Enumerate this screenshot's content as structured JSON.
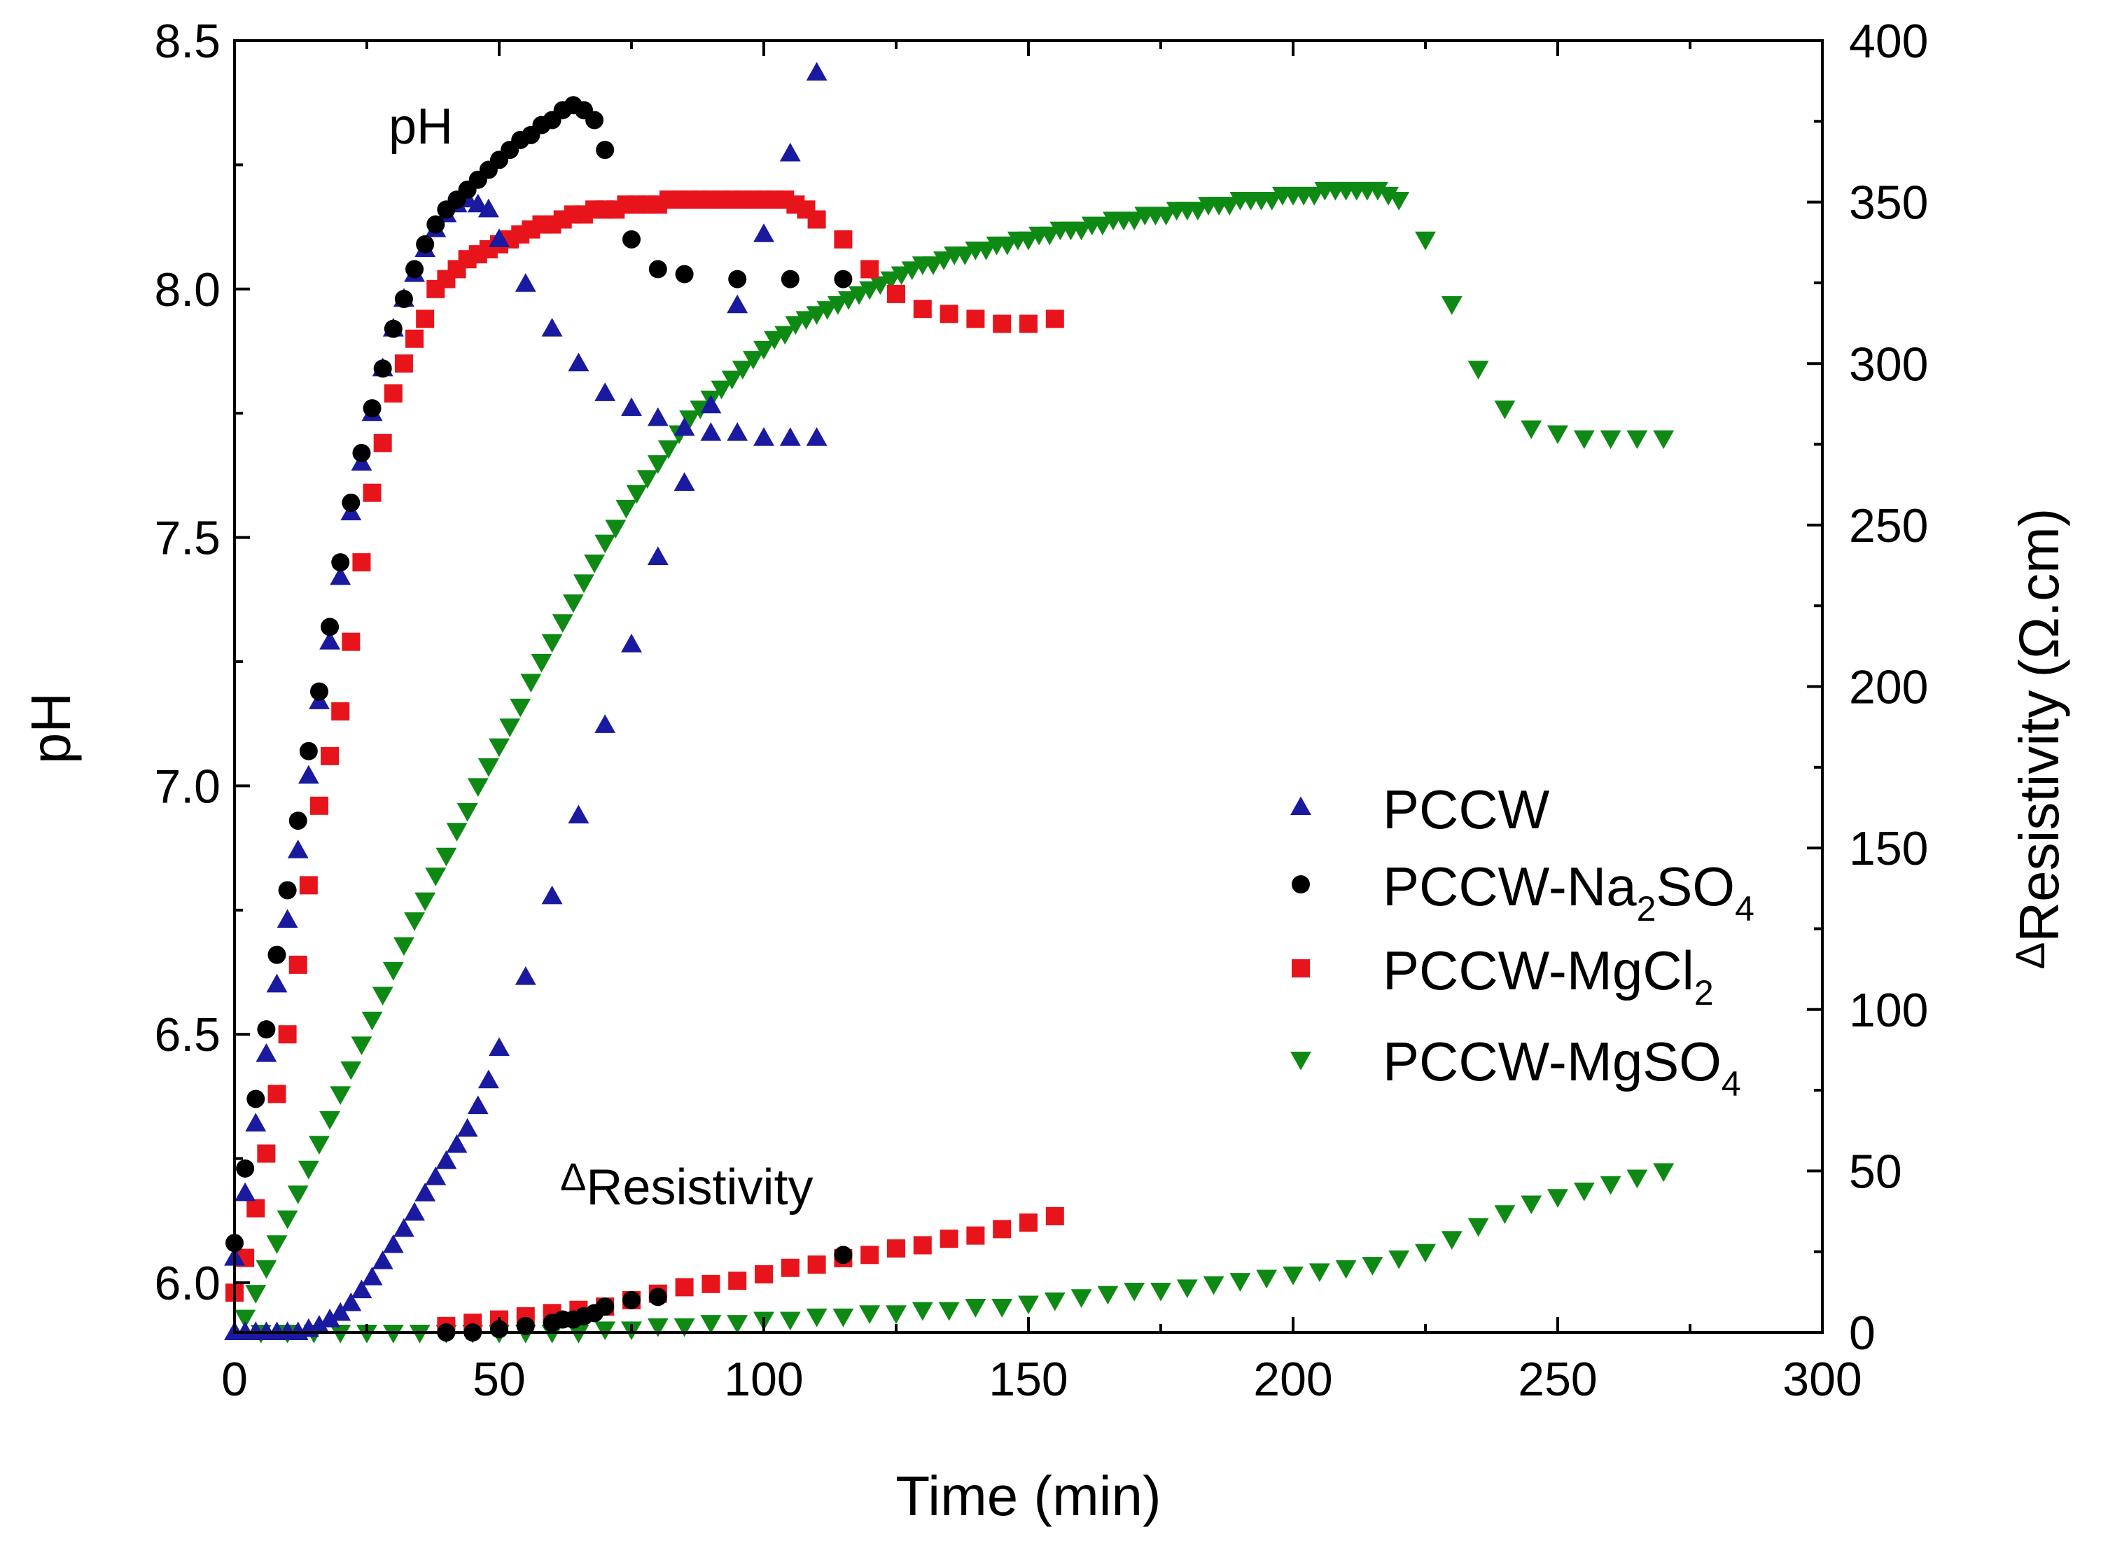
{
  "chart_data": {
    "type": "scatter",
    "title": "",
    "xlabel": "Time (min)",
    "ylabel": "pH",
    "y2label": "ΔResistivity (Ω.cm)",
    "y2label_parts": {
      "delta": "Δ",
      "word": "Resistivity",
      "unit": "(Ω.cm)"
    },
    "xlim": [
      0,
      300
    ],
    "ylim": [
      5.9,
      8.5
    ],
    "y2lim": [
      0,
      400
    ],
    "xticks": [
      0,
      50,
      100,
      150,
      200,
      250,
      300
    ],
    "yticks": [
      6.0,
      6.5,
      7.0,
      7.5,
      8.0,
      8.5
    ],
    "y2ticks": [
      0,
      50,
      100,
      150,
      200,
      250,
      300,
      350,
      400
    ],
    "grid": false,
    "legend_position": "right-middle",
    "annotations": [
      {
        "id": "ph",
        "text": "pH"
      },
      {
        "id": "res",
        "delta": "Δ",
        "text": "Resistivity"
      }
    ],
    "series": [
      {
        "name": "PCCW",
        "label_main": "PCCW",
        "label_sub": "",
        "label_tail": "",
        "marker": "triangle-up",
        "color": "#1a1aa0",
        "ph": {
          "x": [
            0,
            2,
            4,
            6,
            8,
            10,
            12,
            14,
            16,
            18,
            20,
            22,
            24,
            26,
            28,
            30,
            32,
            34,
            36,
            38,
            40,
            42,
            44,
            46,
            48,
            50,
            55,
            60,
            65,
            70,
            75,
            80,
            85,
            90,
            95,
            100,
            105,
            110
          ],
          "y": [
            6.05,
            6.18,
            6.32,
            6.46,
            6.6,
            6.73,
            6.87,
            7.02,
            7.17,
            7.29,
            7.42,
            7.55,
            7.65,
            7.75,
            7.84,
            7.92,
            7.98,
            8.03,
            8.08,
            8.12,
            8.15,
            8.17,
            8.18,
            8.17,
            8.16,
            8.1,
            8.01,
            7.92,
            7.85,
            7.79,
            7.76,
            7.74,
            7.72,
            7.71,
            7.71,
            7.7,
            7.7,
            7.7
          ]
        },
        "res": {
          "x": [
            0,
            2,
            4,
            6,
            8,
            10,
            12,
            14,
            16,
            18,
            20,
            22,
            24,
            26,
            28,
            30,
            32,
            34,
            36,
            38,
            40,
            42,
            44,
            46,
            48,
            50,
            55,
            60,
            65,
            70,
            75,
            80,
            85,
            90,
            95,
            100,
            105,
            110
          ],
          "y": [
            0,
            0,
            0,
            0,
            0,
            0,
            0,
            1,
            2,
            4,
            6,
            9,
            13,
            17,
            22,
            27,
            32,
            37,
            43,
            48,
            53,
            58,
            63,
            70,
            78,
            88,
            110,
            135,
            160,
            188,
            213,
            240,
            263,
            287,
            318,
            340,
            365,
            390
          ]
        }
      },
      {
        "name": "PCCW-Na2SO4",
        "label_main": "PCCW-Na",
        "label_sub": "2",
        "label_tail": "SO",
        "label_sub2": "4",
        "marker": "circle",
        "color": "#000000",
        "ph": {
          "x": [
            0,
            2,
            4,
            6,
            8,
            10,
            12,
            14,
            16,
            18,
            20,
            22,
            24,
            26,
            28,
            30,
            32,
            34,
            36,
            38,
            40,
            42,
            44,
            46,
            48,
            50,
            52,
            54,
            56,
            58,
            60,
            62,
            64,
            66,
            68,
            70,
            75,
            80,
            85,
            95,
            105,
            115
          ],
          "y": [
            6.08,
            6.23,
            6.37,
            6.51,
            6.66,
            6.79,
            6.93,
            7.07,
            7.19,
            7.32,
            7.45,
            7.57,
            7.67,
            7.76,
            7.84,
            7.92,
            7.98,
            8.04,
            8.09,
            8.13,
            8.16,
            8.18,
            8.2,
            8.22,
            8.24,
            8.26,
            8.28,
            8.3,
            8.31,
            8.33,
            8.34,
            8.36,
            8.37,
            8.36,
            8.34,
            8.28,
            8.1,
            8.04,
            8.03,
            8.02,
            8.02,
            8.02
          ]
        },
        "res": {
          "x": [
            40,
            45,
            50,
            55,
            60,
            62,
            64,
            66,
            68,
            70,
            75,
            80,
            115
          ],
          "y": [
            0,
            0,
            1,
            2,
            3,
            4,
            4,
            5,
            6,
            8,
            10,
            11,
            24
          ]
        }
      },
      {
        "name": "PCCW-MgCl2",
        "label_main": "PCCW-MgCl",
        "label_sub": "2",
        "label_tail": "",
        "marker": "square",
        "color": "#e8141c",
        "ph": {
          "x": [
            0,
            2,
            4,
            6,
            8,
            10,
            12,
            14,
            16,
            18,
            20,
            22,
            24,
            26,
            28,
            30,
            32,
            34,
            36,
            38,
            40,
            42,
            44,
            46,
            48,
            50,
            52,
            54,
            56,
            58,
            60,
            62,
            64,
            66,
            68,
            70,
            72,
            74,
            76,
            78,
            80,
            82,
            84,
            86,
            88,
            90,
            92,
            94,
            96,
            98,
            100,
            102,
            104,
            106,
            108,
            110,
            115,
            120,
            125,
            130,
            135,
            140,
            145,
            150,
            155
          ],
          "y": [
            5.98,
            6.05,
            6.15,
            6.26,
            6.38,
            6.5,
            6.64,
            6.8,
            6.96,
            7.06,
            7.15,
            7.29,
            7.45,
            7.59,
            7.69,
            7.79,
            7.85,
            7.9,
            7.94,
            8.0,
            8.02,
            8.04,
            8.06,
            8.07,
            8.08,
            8.09,
            8.1,
            8.11,
            8.12,
            8.13,
            8.13,
            8.14,
            8.15,
            8.15,
            8.16,
            8.16,
            8.16,
            8.17,
            8.17,
            8.17,
            8.17,
            8.18,
            8.18,
            8.18,
            8.18,
            8.18,
            8.18,
            8.18,
            8.18,
            8.18,
            8.18,
            8.18,
            8.18,
            8.17,
            8.16,
            8.14,
            8.1,
            8.04,
            7.99,
            7.96,
            7.95,
            7.94,
            7.93,
            7.93,
            7.94
          ]
        },
        "res": {
          "x": [
            40,
            45,
            50,
            55,
            60,
            65,
            70,
            75,
            80,
            85,
            90,
            95,
            100,
            105,
            110,
            115,
            120,
            125,
            130,
            135,
            140,
            145,
            150,
            155
          ],
          "y": [
            2,
            3,
            4,
            5,
            6,
            7,
            8,
            10,
            12,
            14,
            15,
            16,
            18,
            20,
            21,
            23,
            24,
            26,
            27,
            29,
            30,
            32,
            34,
            36
          ]
        }
      },
      {
        "name": "PCCW-MgSO4",
        "label_main": "PCCW-MgSO",
        "label_sub": "4",
        "label_tail": "",
        "marker": "triangle-down",
        "color": "#0e8a14",
        "ph": {
          "x": [
            2,
            4,
            6,
            8,
            10,
            12,
            14,
            16,
            18,
            20,
            22,
            24,
            26,
            28,
            30,
            32,
            34,
            36,
            38,
            40,
            42,
            44,
            46,
            48,
            50,
            52,
            54,
            56,
            58,
            60,
            62,
            64,
            66,
            68,
            70,
            72,
            74,
            76,
            78,
            80,
            82,
            84,
            86,
            88,
            90,
            92,
            94,
            96,
            98,
            100,
            102,
            104,
            106,
            108,
            110,
            112,
            114,
            116,
            118,
            120,
            122,
            124,
            126,
            128,
            130,
            132,
            134,
            136,
            138,
            140,
            142,
            144,
            146,
            148,
            150,
            152,
            154,
            156,
            158,
            160,
            162,
            164,
            166,
            168,
            170,
            172,
            174,
            176,
            178,
            180,
            182,
            184,
            186,
            188,
            190,
            192,
            194,
            196,
            198,
            200,
            202,
            204,
            206,
            208,
            210,
            212,
            214,
            216,
            218,
            220,
            225,
            230,
            235,
            240,
            245,
            250,
            255,
            260,
            265,
            270
          ],
          "y": [
            5.93,
            5.98,
            6.03,
            6.08,
            6.13,
            6.18,
            6.23,
            6.28,
            6.33,
            6.38,
            6.43,
            6.48,
            6.53,
            6.58,
            6.63,
            6.68,
            6.73,
            6.77,
            6.82,
            6.86,
            6.91,
            6.95,
            7.0,
            7.04,
            7.08,
            7.12,
            7.16,
            7.21,
            7.25,
            7.29,
            7.33,
            7.37,
            7.41,
            7.45,
            7.49,
            7.52,
            7.56,
            7.59,
            7.62,
            7.65,
            7.68,
            7.71,
            7.74,
            7.76,
            7.78,
            7.8,
            7.82,
            7.84,
            7.86,
            7.88,
            7.9,
            7.91,
            7.93,
            7.94,
            7.95,
            7.96,
            7.97,
            7.98,
            7.99,
            8.0,
            8.01,
            8.02,
            8.03,
            8.04,
            8.05,
            8.05,
            8.06,
            8.07,
            8.07,
            8.08,
            8.08,
            8.09,
            8.09,
            8.1,
            8.1,
            8.11,
            8.11,
            8.12,
            8.12,
            8.12,
            8.13,
            8.13,
            8.14,
            8.14,
            8.14,
            8.15,
            8.15,
            8.15,
            8.16,
            8.16,
            8.16,
            8.17,
            8.17,
            8.17,
            8.18,
            8.18,
            8.18,
            8.18,
            8.19,
            8.19,
            8.19,
            8.19,
            8.2,
            8.2,
            8.2,
            8.2,
            8.2,
            8.2,
            8.19,
            8.18,
            8.1,
            7.97,
            7.84,
            7.76,
            7.72,
            7.71,
            7.7,
            7.7,
            7.7,
            7.7
          ]
        },
        "res": {
          "x": [
            5,
            10,
            15,
            20,
            25,
            30,
            35,
            40,
            45,
            50,
            55,
            60,
            65,
            70,
            75,
            80,
            85,
            90,
            95,
            100,
            105,
            110,
            115,
            120,
            125,
            130,
            135,
            140,
            145,
            150,
            155,
            160,
            165,
            170,
            175,
            180,
            185,
            190,
            195,
            200,
            205,
            210,
            215,
            220,
            225,
            230,
            235,
            240,
            245,
            250,
            255,
            260,
            265,
            270
          ],
          "y": [
            0,
            0,
            0,
            0,
            0,
            0,
            0,
            0,
            0,
            0,
            0,
            0,
            0,
            1,
            1,
            2,
            2,
            3,
            3,
            4,
            4,
            5,
            5,
            6,
            6,
            7,
            7,
            8,
            8,
            9,
            10,
            11,
            12,
            13,
            13,
            14,
            15,
            16,
            17,
            18,
            19,
            20,
            21,
            23,
            25,
            29,
            33,
            37,
            40,
            42,
            44,
            46,
            48,
            50
          ]
        }
      }
    ]
  }
}
